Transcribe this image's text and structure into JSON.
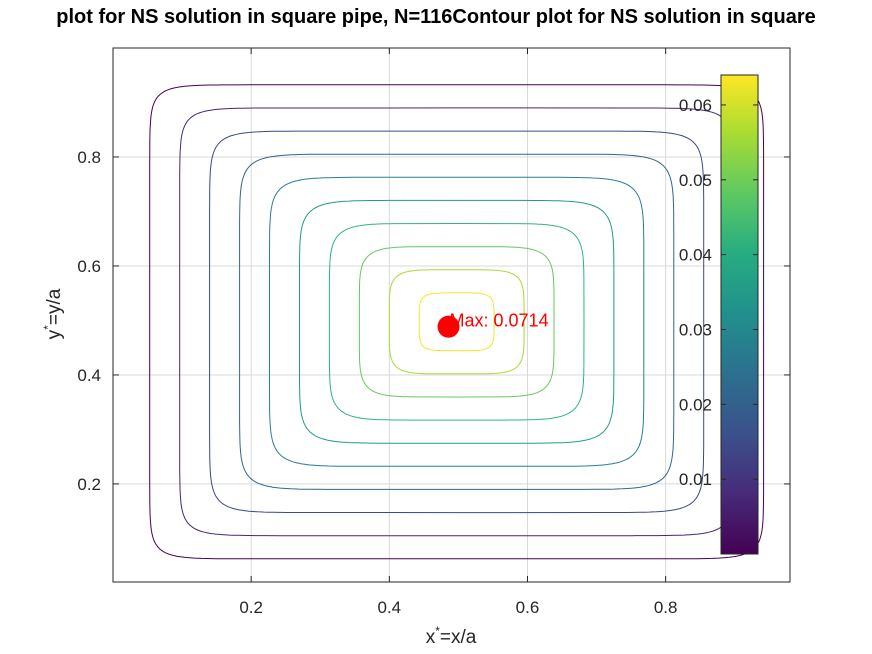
{
  "chart_data": {
    "type": "contour",
    "title": "plot for NS solution in square pipe, N=116Contour plot for NS solution in square",
    "xlabel_main": "x",
    "xlabel_sup": "*",
    "xlabel_rest": "=x/a",
    "ylabel_main": "y",
    "ylabel_sup": "*",
    "ylabel_rest": "=y/a",
    "xlim": [
      0.0,
      0.98
    ],
    "ylim": [
      0.02,
      1.0
    ],
    "x_ticks": [
      0.2,
      0.4,
      0.6,
      0.8
    ],
    "x_tick_labels": [
      "0.2",
      "0.4",
      "0.6",
      "0.8"
    ],
    "y_ticks": [
      0.2,
      0.4,
      0.6,
      0.8
    ],
    "y_tick_labels": [
      "0.2",
      "0.4",
      "0.6",
      "0.8"
    ],
    "grid": true,
    "contour_levels": [
      0.0,
      0.007,
      0.014,
      0.021,
      0.028,
      0.035,
      0.042,
      0.049,
      0.056,
      0.063
    ],
    "max_point": {
      "x": 0.4857,
      "y": 0.4886,
      "value": 0.0714
    },
    "max_label": "Max: 0.0714",
    "colorbar": {
      "range": [
        0.0,
        0.064
      ],
      "ticks": [
        0.01,
        0.02,
        0.03,
        0.04,
        0.05,
        0.06
      ],
      "tick_labels": [
        "0.01",
        "0.02",
        "0.03",
        "0.04",
        "0.05",
        "0.06"
      ],
      "colormap": "viridis"
    }
  },
  "colors": {
    "axes_edge": "#262626",
    "grid": "#d9d9d9",
    "max_marker": "#ff0000"
  }
}
